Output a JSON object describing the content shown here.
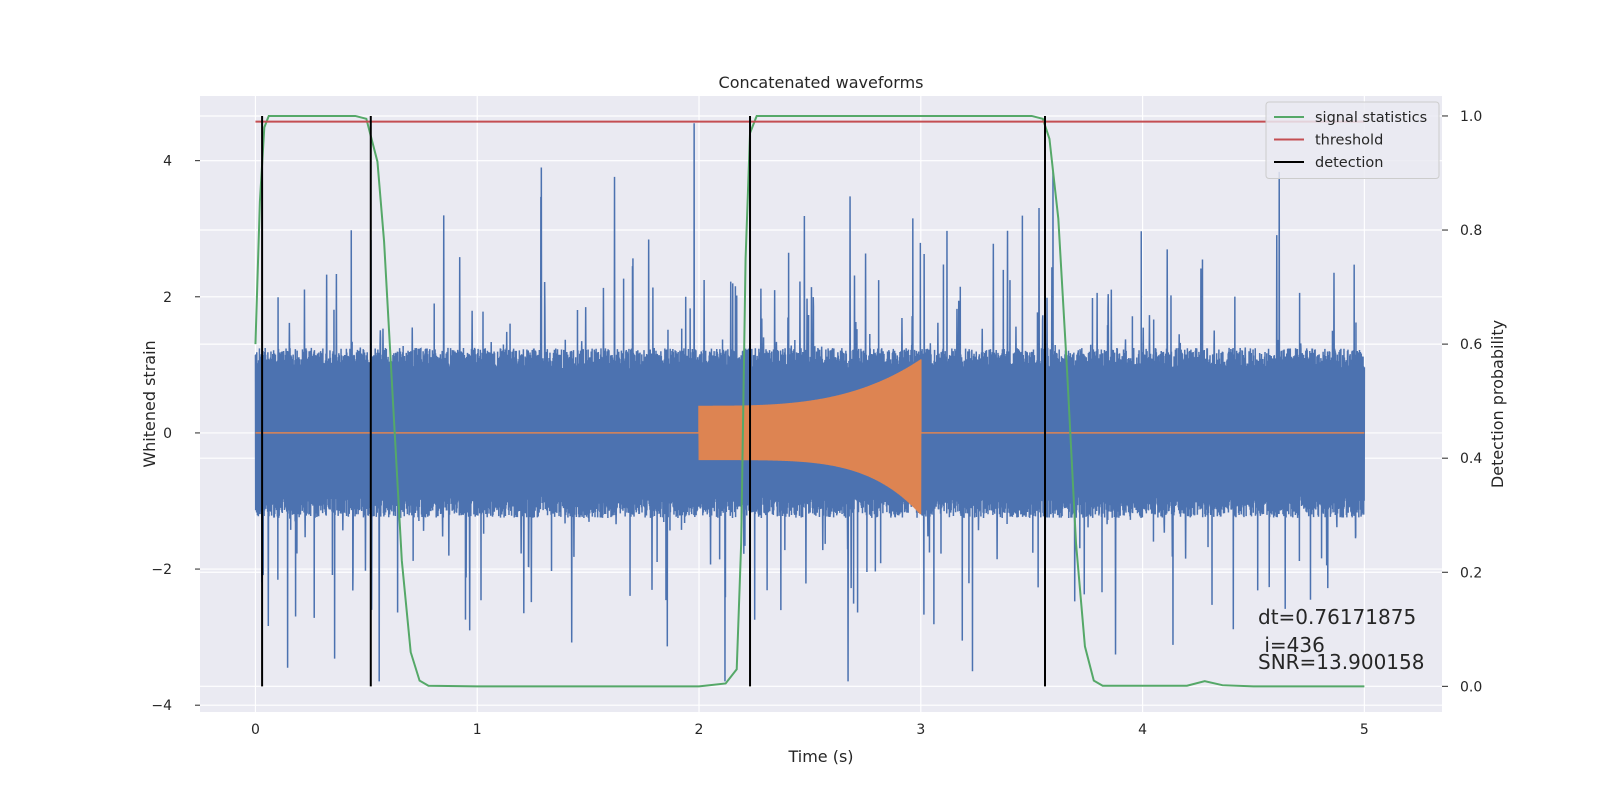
{
  "chart_data": {
    "type": "line",
    "title": "Concatenated waveforms",
    "xlabel": "Time (s)",
    "ylabel": "Whitened strain",
    "y2label": "Detection probability",
    "xlim": [
      -0.25,
      5.35
    ],
    "ylim": [
      -4.1,
      4.95
    ],
    "y2lim": [
      -0.045,
      1.035
    ],
    "x_ticks": [
      0,
      1,
      2,
      3,
      4,
      5
    ],
    "y_ticks": [
      -4,
      -2,
      0,
      2,
      4
    ],
    "y2_ticks": [
      0.0,
      0.2,
      0.4,
      0.6,
      0.8,
      1.0
    ],
    "y2_tick_labels": [
      "0.0",
      "0.2",
      "0.4",
      "0.6",
      "0.8",
      "1.0"
    ],
    "grid": true,
    "legend_position": "top-right",
    "series": [
      {
        "name": "",
        "kind": "noise",
        "axis": "left",
        "color": "#4c72b0",
        "x_range": [
          0,
          5
        ],
        "envelope": 1.25,
        "spike_max": 4.55,
        "spike_min": -3.65
      },
      {
        "name": "",
        "kind": "chirp",
        "axis": "left",
        "color": "#dd8452",
        "baseline": 0,
        "x_range": [
          0,
          5
        ],
        "chirp_range": [
          2.0,
          3.0
        ],
        "amp_start": 0.4,
        "amp_end_positive": 1.08,
        "amp_end_negative": -1.2
      },
      {
        "name": "signal statistics",
        "axis": "right",
        "color": "#55a868",
        "x": [
          0.0,
          0.02,
          0.04,
          0.06,
          0.1,
          0.3,
          0.45,
          0.5,
          0.55,
          0.58,
          0.62,
          0.66,
          0.7,
          0.74,
          0.78,
          1.0,
          2.0,
          2.12,
          2.17,
          2.19,
          2.21,
          2.23,
          2.26,
          2.3,
          2.5,
          3.5,
          3.55,
          3.58,
          3.62,
          3.66,
          3.7,
          3.74,
          3.78,
          3.82,
          4.2,
          4.28,
          4.36,
          4.5,
          5.0
        ],
        "y": [
          0.6,
          0.85,
          0.98,
          1.0,
          1.0,
          1.0,
          1.0,
          0.995,
          0.92,
          0.78,
          0.5,
          0.22,
          0.06,
          0.01,
          0.001,
          0.0,
          0.0,
          0.005,
          0.03,
          0.25,
          0.75,
          0.97,
          1.0,
          1.0,
          1.0,
          1.0,
          0.995,
          0.96,
          0.82,
          0.55,
          0.25,
          0.07,
          0.01,
          0.001,
          0.001,
          0.009,
          0.002,
          0.0,
          0.0
        ]
      },
      {
        "name": "threshold",
        "axis": "right",
        "color": "#c44e52",
        "x": [
          0,
          5
        ],
        "y": [
          0.99,
          0.99
        ]
      },
      {
        "name": "detection",
        "axis": "right",
        "color": "#000000",
        "vlines": [
          0.03,
          0.52,
          2.23,
          3.56
        ],
        "ymin": 0.0,
        "ymax": 1.0
      }
    ],
    "annotations": [
      {
        "text": "dt=0.76171875",
        "x": 4.5,
        "y2": 0.1
      },
      {
        "text": " i=436",
        "x": 4.5,
        "y2": 0.05
      },
      {
        "text": "SNR=13.900158",
        "x": 4.5,
        "y2": 0.02
      }
    ]
  }
}
